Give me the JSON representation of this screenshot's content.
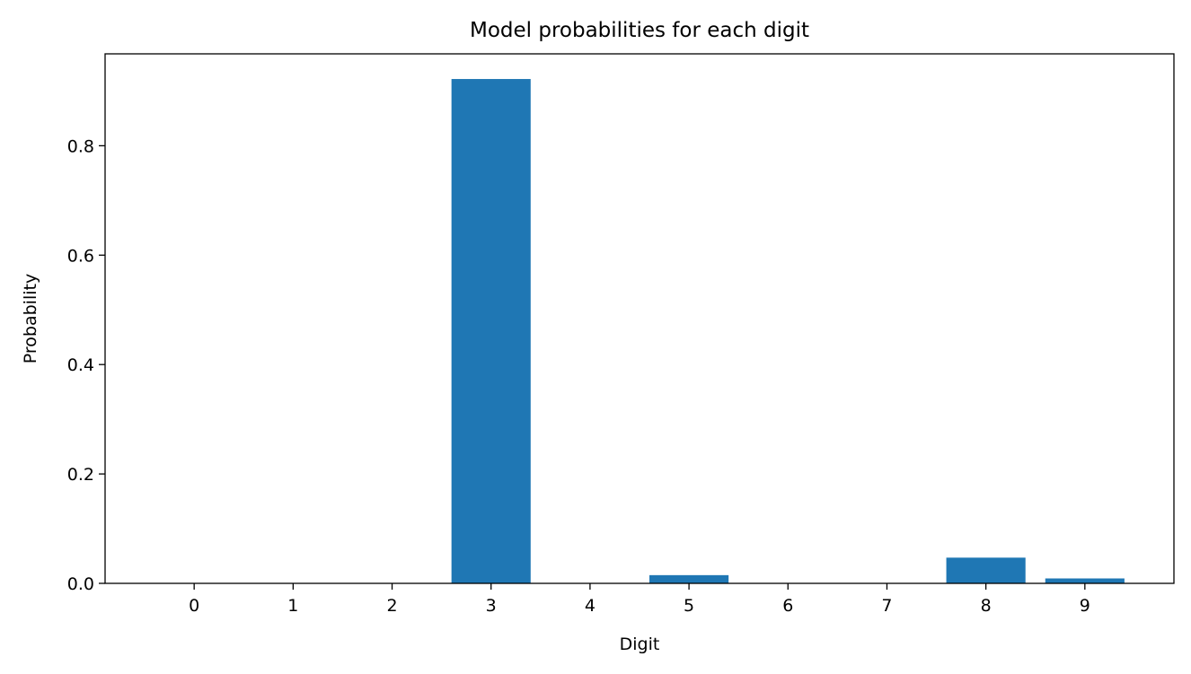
{
  "chart_data": {
    "type": "bar",
    "title": "Model probabilities for each digit",
    "xlabel": "Digit",
    "ylabel": "Probability",
    "categories": [
      "0",
      "1",
      "2",
      "3",
      "4",
      "5",
      "6",
      "7",
      "8",
      "9"
    ],
    "values": [
      0.0003,
      0.0002,
      0.0005,
      0.922,
      0.0004,
      0.015,
      0.0003,
      0.0008,
      0.047,
      0.009
    ],
    "ylim": [
      0,
      0.968
    ],
    "yticks": [
      0.0,
      0.2,
      0.4,
      0.6,
      0.8
    ],
    "ytick_labels": [
      "0.0",
      "0.2",
      "0.4",
      "0.6",
      "0.8"
    ],
    "grid": false,
    "bar_color": "#1f77b4"
  }
}
